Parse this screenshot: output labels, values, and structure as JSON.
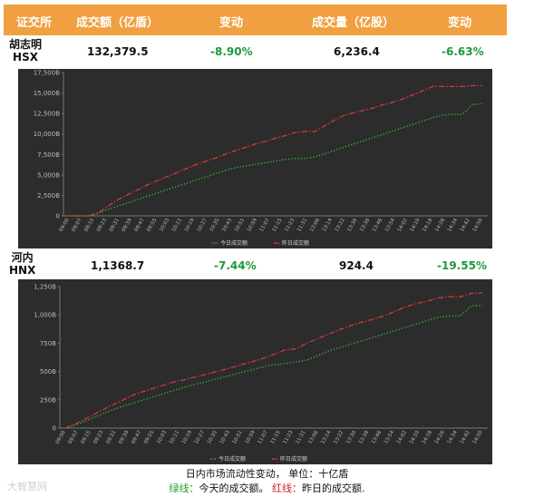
{
  "header": {
    "col_exchange": "证交所",
    "col_value": "成交额（亿盾）",
    "col_change1": "变动",
    "col_volume": "成交量（亿股）",
    "col_change2": "变动",
    "bg_color": "#f0a040"
  },
  "rows": [
    {
      "exchange_cn": "胡志明",
      "exchange_code": "HSX",
      "value": "132,379.5",
      "value_change": "-8.90%",
      "volume": "6,236.4",
      "volume_change": "-6.63%"
    },
    {
      "exchange_cn": "河内",
      "exchange_code": "HNX",
      "value": "1,1368.7",
      "value_change": "-7.44%",
      "volume": "924.4",
      "volume_change": "-19.55%"
    }
  ],
  "chart_data": [
    {
      "type": "line",
      "ylim": [
        0,
        17500
      ],
      "yticks": [
        "0",
        "2,500B",
        "5,000B",
        "7,500B",
        "10,000B",
        "12,500B",
        "15,000B",
        "17,500B"
      ],
      "xticks": [
        "09:00",
        "09:07",
        "09:15",
        "09:23",
        "09:31",
        "09:39",
        "09:47",
        "09:55",
        "10:03",
        "10:11",
        "10:19",
        "10:27",
        "10:35",
        "10:43",
        "10:51",
        "10:59",
        "11:07",
        "11:15",
        "11:23",
        "11:31",
        "13:06",
        "13:14",
        "13:22",
        "13:30",
        "13:38",
        "13:46",
        "13:54",
        "14:02",
        "14:10",
        "14:18",
        "14:26",
        "14:34",
        "14:42",
        "14:50"
      ],
      "legend": {
        "placement": "bottom-center"
      },
      "series": [
        {
          "name": "今日成交额",
          "color": "#3fc23f",
          "style": "dotted",
          "values": [
            0,
            0,
            0,
            300,
            800,
            1200,
            1600,
            2000,
            2400,
            2800,
            3200,
            3600,
            4000,
            4400,
            4800,
            5200,
            5600,
            5900,
            6100,
            6300,
            6500,
            6700,
            6900,
            7000,
            7000,
            7200,
            7600,
            8000,
            8400,
            8800,
            9200,
            9600,
            10000,
            10400,
            10800,
            11200,
            11600,
            12000,
            12300,
            12400,
            12400,
            13600,
            13700
          ]
        },
        {
          "name": "昨日成交额",
          "color": "#d23a3a",
          "style": "dashdot",
          "values": [
            0,
            0,
            0,
            400,
            1200,
            2000,
            2600,
            3200,
            3800,
            4300,
            4800,
            5300,
            5800,
            6300,
            6700,
            7100,
            7600,
            8000,
            8400,
            8800,
            9100,
            9500,
            9800,
            10200,
            10300,
            10300,
            11000,
            11700,
            12300,
            12600,
            12900,
            13200,
            13600,
            13900,
            14300,
            14800,
            15300,
            15800,
            15800,
            15800,
            15800,
            15900,
            15900
          ]
        }
      ]
    },
    {
      "type": "line",
      "ylim": [
        0,
        1250
      ],
      "yticks": [
        "0",
        "250B",
        "500B",
        "750B",
        "1,000B",
        "1,250B"
      ],
      "xticks": [
        "09:00",
        "09:07",
        "09:15",
        "09:23",
        "09:31",
        "09:39",
        "09:47",
        "09:55",
        "10:03",
        "10:11",
        "10:19",
        "10:27",
        "10:35",
        "10:43",
        "10:51",
        "10:59",
        "11:07",
        "11:15",
        "11:23",
        "11:31",
        "13:06",
        "13:14",
        "13:22",
        "13:30",
        "13:38",
        "13:46",
        "13:54",
        "14:02",
        "14:10",
        "14:18",
        "14:26",
        "14:34",
        "14:42",
        "14:50"
      ],
      "legend": {
        "placement": "bottom-center"
      },
      "series": [
        {
          "name": "今日成交额",
          "color": "#3fc23f",
          "style": "dotted",
          "values": [
            0,
            30,
            70,
            110,
            150,
            185,
            215,
            245,
            275,
            305,
            335,
            365,
            390,
            415,
            440,
            465,
            490,
            515,
            540,
            560,
            570,
            585,
            600,
            640,
            680,
            710,
            740,
            770,
            800,
            830,
            860,
            890,
            920,
            950,
            980,
            990,
            990,
            1080,
            1085
          ]
        },
        {
          "name": "昨日成交额",
          "color": "#d23a3a",
          "style": "dashdot",
          "values": [
            0,
            40,
            90,
            140,
            190,
            235,
            285,
            320,
            350,
            380,
            410,
            430,
            455,
            480,
            505,
            530,
            560,
            585,
            615,
            650,
            690,
            700,
            750,
            790,
            830,
            870,
            905,
            935,
            960,
            990,
            1030,
            1070,
            1100,
            1120,
            1150,
            1160,
            1160,
            1190,
            1195
          ]
        }
      ]
    }
  ],
  "caption": {
    "line1": "日内市场流动性变动，  单位：十亿盾",
    "green_label": "绿线：",
    "green_text": "今天的成交额。  ",
    "red_label": "红线：",
    "red_text": "昨日的成交额."
  },
  "watermark": "大智慧网"
}
